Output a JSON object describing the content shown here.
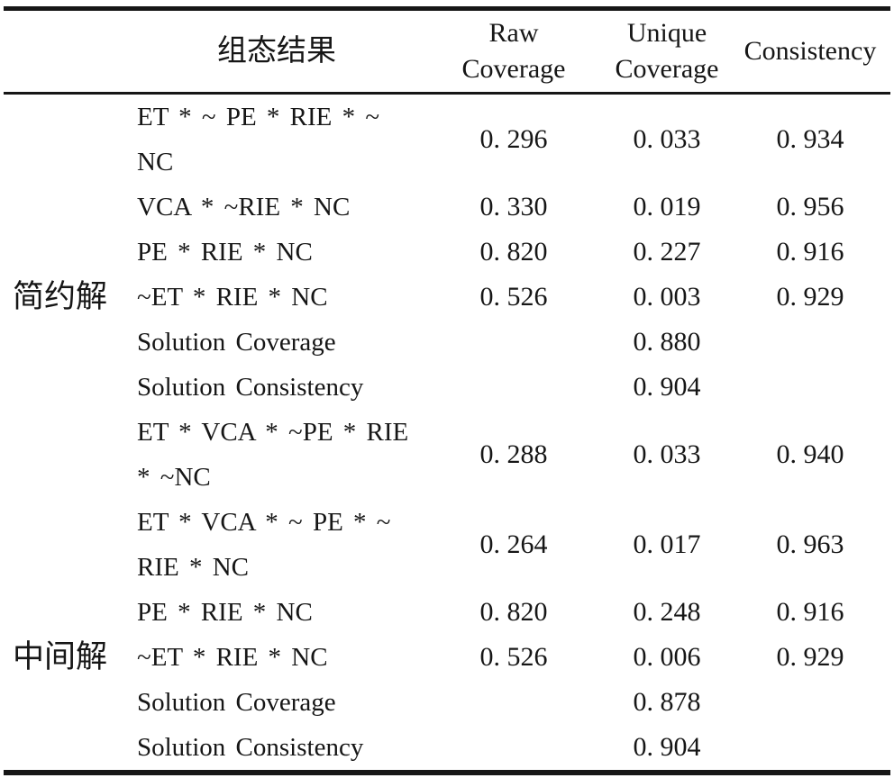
{
  "table": {
    "header": {
      "config": "组态结果",
      "raw": "Raw\nCoverage",
      "unique": "Unique\nCoverage",
      "consistency": "Consistency"
    },
    "group_labels": {
      "parsimonious": "简约解",
      "intermediate": "中间解"
    },
    "rows": [
      {
        "label": "",
        "config": "ET * ~ PE * RIE * ~\nNC",
        "raw": "0. 296",
        "unique": "0. 033",
        "consistency": "0. 934"
      },
      {
        "label": "",
        "config": "VCA * ~RIE * NC",
        "raw": "0. 330",
        "unique": "0. 019",
        "consistency": "0. 956"
      },
      {
        "label": "",
        "config": "PE * RIE * NC",
        "raw": "0. 820",
        "unique": "0. 227",
        "consistency": "0. 916"
      },
      {
        "label": "简约解",
        "config": "~ET * RIE * NC",
        "raw": "0. 526",
        "unique": "0. 003",
        "consistency": "0. 929"
      },
      {
        "label": "",
        "config": "Solution Coverage",
        "raw": "",
        "unique": "0. 880",
        "consistency": ""
      },
      {
        "label": "",
        "config": "Solution Consistency",
        "raw": "",
        "unique": "0. 904",
        "consistency": ""
      },
      {
        "label": "",
        "config": "ET * VCA * ~PE * RIE\n* ~NC",
        "raw": "0. 288",
        "unique": "0. 033",
        "consistency": "0. 940"
      },
      {
        "label": "",
        "config": "ET * VCA * ~ PE * ~\nRIE * NC",
        "raw": "0. 264",
        "unique": "0. 017",
        "consistency": "0. 963"
      },
      {
        "label": "",
        "config": "PE * RIE * NC",
        "raw": "0. 820",
        "unique": "0. 248",
        "consistency": "0. 916"
      },
      {
        "label": "中间解",
        "config": "~ET * RIE * NC",
        "raw": "0. 526",
        "unique": "0. 006",
        "consistency": "0. 929"
      },
      {
        "label": "",
        "config": "Solution Coverage",
        "raw": "",
        "unique": "0. 878",
        "consistency": ""
      },
      {
        "label": "",
        "config": "Solution Consistency",
        "raw": "",
        "unique": "0. 904",
        "consistency": ""
      }
    ]
  }
}
